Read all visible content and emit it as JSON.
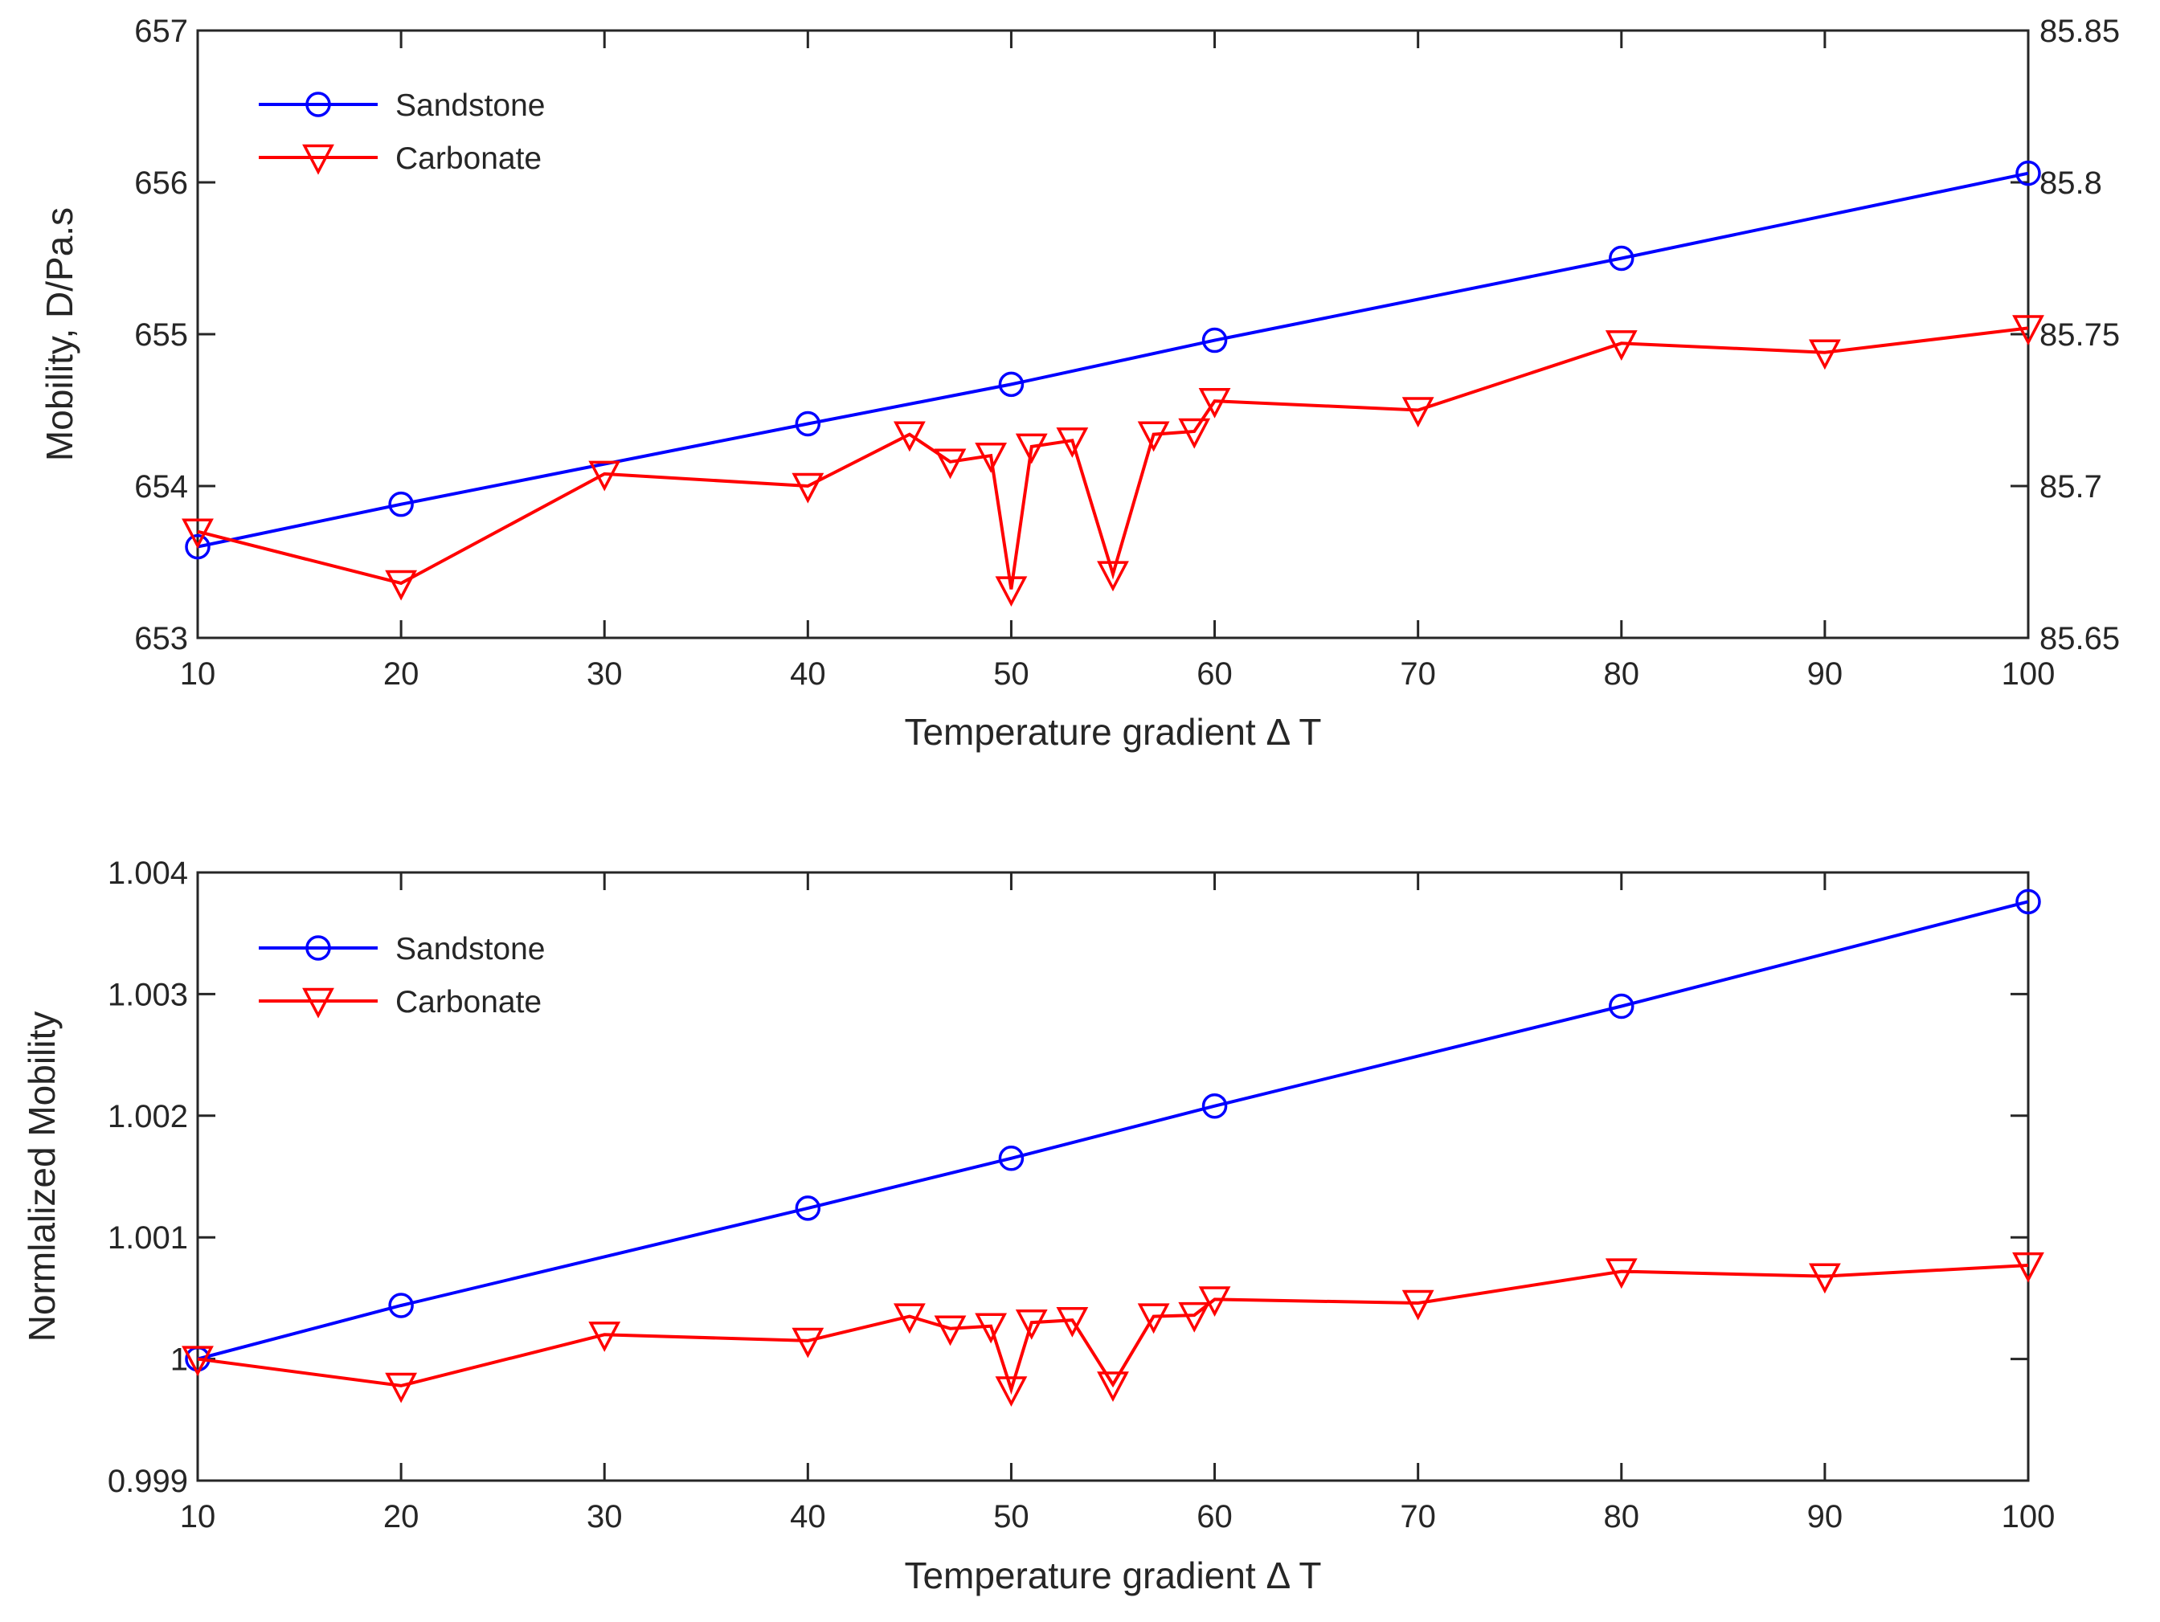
{
  "chart_data": [
    {
      "type": "line",
      "title": "",
      "xlabel": "Temperature gradient Δ T",
      "ylabel": "Mobility, D/Pa.s",
      "xlim": [
        10,
        100
      ],
      "xticks": [
        10,
        20,
        30,
        40,
        50,
        60,
        70,
        80,
        90,
        100
      ],
      "xtick_labels": [
        "10",
        "20",
        "30",
        "40",
        "50",
        "60",
        "70",
        "80",
        "90",
        "100"
      ],
      "ylim": [
        653,
        657
      ],
      "yticks": [
        653,
        654,
        655,
        656,
        657
      ],
      "ytick_labels": [
        "653",
        "654",
        "655",
        "656",
        "657"
      ],
      "y2lim": [
        85.65,
        85.85
      ],
      "y2ticks": [
        85.65,
        85.7,
        85.75,
        85.8,
        85.85
      ],
      "y2tick_labels": [
        "85.65",
        "85.7",
        "85.75",
        "85.8",
        "85.85"
      ],
      "legend_position": "top-left",
      "series": [
        {
          "name": "Sandstone",
          "color": "#0000ff",
          "marker": "circle",
          "axis": "left",
          "x": [
            10,
            20,
            40,
            50,
            60,
            80,
            100
          ],
          "values": [
            653.6,
            653.88,
            654.41,
            654.67,
            654.96,
            655.5,
            656.06
          ]
        },
        {
          "name": "Carbonate",
          "color": "#ff0000",
          "marker": "triangle-down",
          "axis": "right",
          "x": [
            10,
            20,
            30,
            40,
            45,
            47,
            49,
            50,
            51,
            53,
            55,
            57,
            59,
            60,
            70,
            80,
            90,
            100
          ],
          "values": [
            85.685,
            85.668,
            85.704,
            85.7,
            85.717,
            85.708,
            85.71,
            85.666,
            85.713,
            85.715,
            85.671,
            85.717,
            85.718,
            85.728,
            85.725,
            85.747,
            85.744,
            85.752
          ]
        }
      ]
    },
    {
      "type": "line",
      "title": "",
      "xlabel": "Temperature gradient Δ T",
      "ylabel": "Normlalized Mobility",
      "xlim": [
        10,
        100
      ],
      "xticks": [
        10,
        20,
        30,
        40,
        50,
        60,
        70,
        80,
        90,
        100
      ],
      "xtick_labels": [
        "10",
        "20",
        "30",
        "40",
        "50",
        "60",
        "70",
        "80",
        "90",
        "100"
      ],
      "ylim": [
        0.999,
        1.004
      ],
      "yticks": [
        0.999,
        1.0,
        1.001,
        1.002,
        1.003,
        1.004
      ],
      "ytick_labels": [
        "0.999",
        "1",
        "1.001",
        "1.002",
        "1.003",
        "1.004"
      ],
      "legend_position": "top-left",
      "series": [
        {
          "name": "Sandstone",
          "color": "#0000ff",
          "marker": "circle",
          "axis": "left",
          "x": [
            10,
            20,
            40,
            50,
            60,
            80,
            100
          ],
          "values": [
            1.0,
            1.00044,
            1.00124,
            1.00165,
            1.00208,
            1.0029,
            1.00376
          ]
        },
        {
          "name": "Carbonate",
          "color": "#ff0000",
          "marker": "triangle-down",
          "axis": "left",
          "x": [
            10,
            20,
            30,
            40,
            45,
            47,
            49,
            50,
            51,
            53,
            55,
            57,
            59,
            60,
            70,
            80,
            90,
            100
          ],
          "values": [
            1.0,
            0.99978,
            1.0002,
            1.00015,
            1.00035,
            1.00025,
            1.00027,
            0.99975,
            1.0003,
            1.00032,
            0.99979,
            1.00035,
            1.00036,
            1.00049,
            1.00046,
            1.00072,
            1.00068,
            1.00077
          ]
        }
      ]
    }
  ]
}
